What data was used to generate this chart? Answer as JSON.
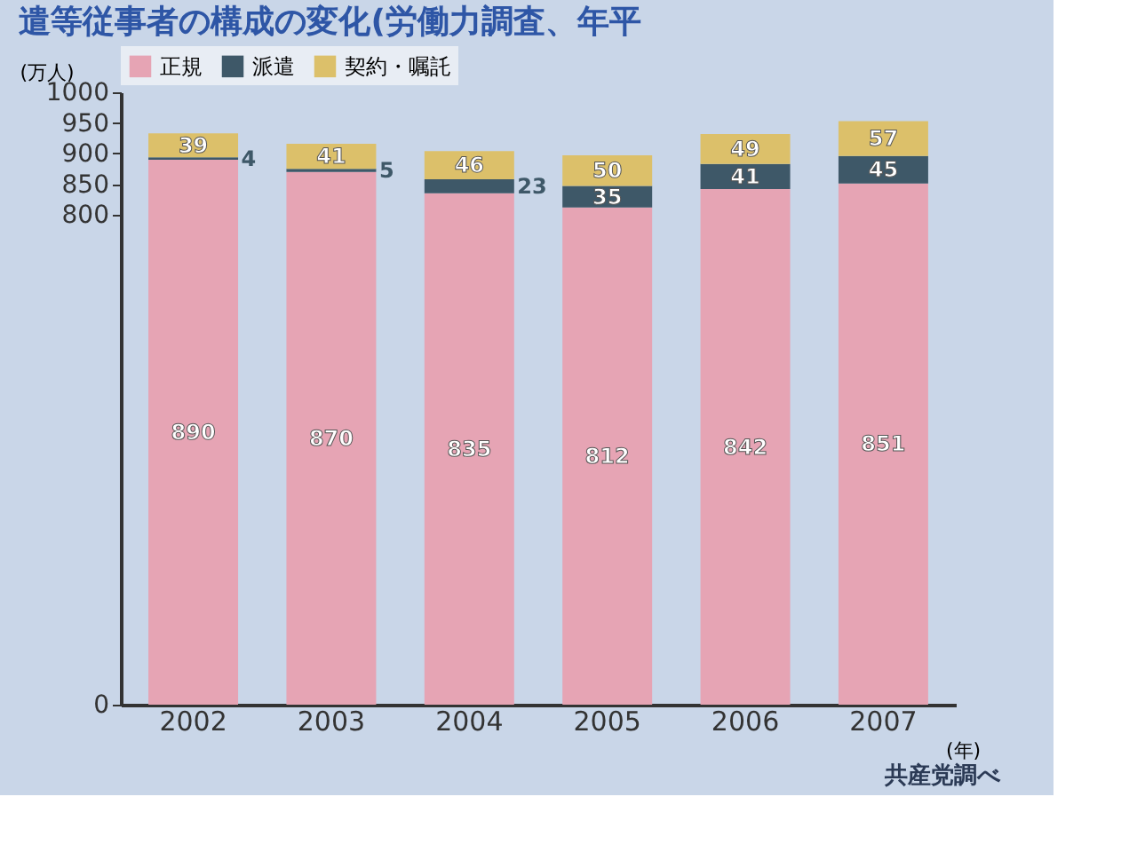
{
  "chart_data": {
    "type": "bar",
    "stacked": true,
    "title": "遣等従事者の構成の変化(労働力調査、年平",
    "xlabel": "(年)",
    "ylabel": "(万人)",
    "categories": [
      "2002",
      "2003",
      "2004",
      "2005",
      "2006",
      "2007"
    ],
    "series": [
      {
        "name": "正規",
        "color": "#e6a4b4",
        "values": [
          890,
          870,
          835,
          812,
          842,
          851
        ]
      },
      {
        "name": "派遣",
        "color": "#3e5868",
        "values": [
          4,
          5,
          23,
          35,
          41,
          45
        ]
      },
      {
        "name": "契約・嘱託",
        "color": "#dcc06a",
        "values": [
          39,
          41,
          46,
          50,
          49,
          57
        ]
      }
    ],
    "ylim": [
      0,
      1000
    ],
    "yticks": [
      0,
      800,
      850,
      900,
      950,
      1000
    ],
    "data_labels": true,
    "legend": "top",
    "grid": false,
    "annotations": [
      "共産党調べ"
    ]
  }
}
